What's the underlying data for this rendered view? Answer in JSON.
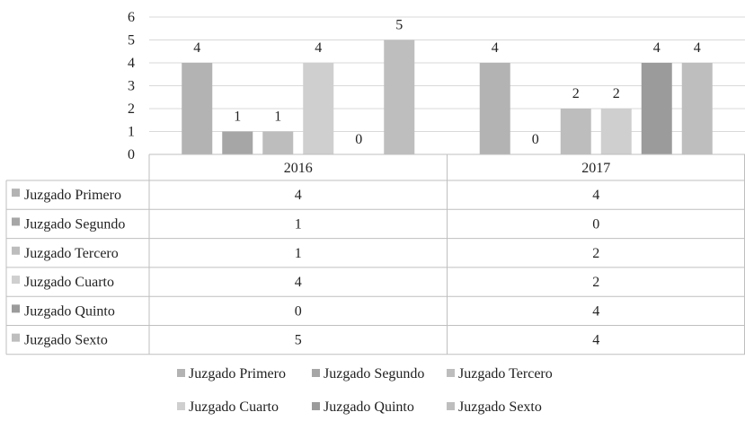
{
  "chart_data": {
    "type": "bar",
    "categories": [
      "2016",
      "2017"
    ],
    "series": [
      {
        "name": "Juzgado Primero",
        "values": [
          4,
          4
        ],
        "color": "#b3b3b3"
      },
      {
        "name": "Juzgado Segundo",
        "values": [
          1,
          0
        ],
        "color": "#a6a6a6"
      },
      {
        "name": "Juzgado Tercero",
        "values": [
          1,
          2
        ],
        "color": "#bdbdbd"
      },
      {
        "name": "Juzgado Cuarto",
        "values": [
          4,
          2
        ],
        "color": "#cfcfcf"
      },
      {
        "name": "Juzgado Quinto",
        "values": [
          0,
          4
        ],
        "color": "#9b9b9b"
      },
      {
        "name": "Juzgado Sexto",
        "values": [
          5,
          4
        ],
        "color": "#bebebe"
      }
    ],
    "ylim": [
      0,
      6
    ],
    "yticks": [
      "0",
      "1",
      "2",
      "3",
      "4",
      "5",
      "6"
    ],
    "grid": true,
    "data_table": true,
    "legend_position": "bottom"
  }
}
